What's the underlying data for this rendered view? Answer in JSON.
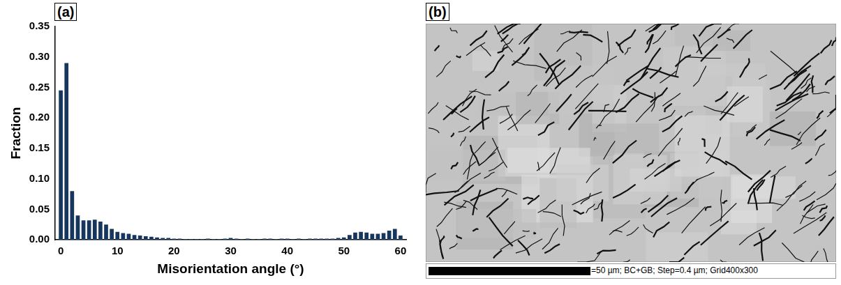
{
  "chart_data": {
    "type": "bar",
    "panel_label": "(a)",
    "x_label": "Misorientation angle (°)",
    "y_label": "Fraction",
    "x": [
      0,
      1,
      2,
      3,
      4,
      5,
      6,
      7,
      8,
      9,
      10,
      11,
      12,
      13,
      14,
      15,
      16,
      17,
      18,
      19,
      20,
      21,
      22,
      23,
      24,
      25,
      26,
      27,
      28,
      29,
      30,
      31,
      32,
      33,
      34,
      35,
      36,
      37,
      38,
      39,
      40,
      41,
      42,
      43,
      44,
      45,
      46,
      47,
      48,
      49,
      50,
      51,
      52,
      53,
      54,
      55,
      56,
      57,
      58,
      59,
      60
    ],
    "values": [
      0.245,
      0.29,
      0.08,
      0.04,
      0.032,
      0.032,
      0.033,
      0.03,
      0.025,
      0.018,
      0.013,
      0.011,
      0.01,
      0.008,
      0.007,
      0.006,
      0.005,
      0.004,
      0.003,
      0.003,
      0.002,
      0.002,
      0.001,
      0.001,
      0.001,
      0.001,
      0.002,
      0.001,
      0.001,
      0.002,
      0.003,
      0.002,
      0.001,
      0.002,
      0.001,
      0.001,
      0.002,
      0.002,
      0.001,
      0.002,
      0.002,
      0.001,
      0.002,
      0.001,
      0.002,
      0.002,
      0.002,
      0.002,
      0.002,
      0.003,
      0.004,
      0.008,
      0.012,
      0.013,
      0.012,
      0.01,
      0.01,
      0.011,
      0.015,
      0.018,
      0.007
    ],
    "color": "#17365d",
    "xlim": [
      -1,
      61
    ],
    "xticks": [
      0,
      10,
      20,
      30,
      40,
      50,
      60
    ],
    "ylim": [
      0,
      0.35
    ],
    "yticks": [
      {
        "value": 0,
        "label": "0.00"
      },
      {
        "value": 0.05,
        "label": "0.05"
      },
      {
        "value": 0.1,
        "label": "0.10"
      },
      {
        "value": 0.15,
        "label": "0.15"
      },
      {
        "value": 0.2,
        "label": "0.20"
      },
      {
        "value": 0.25,
        "label": "0.25"
      },
      {
        "value": 0.3,
        "label": "0.30"
      },
      {
        "value": 0.35,
        "label": "0.35"
      }
    ],
    "grid": false
  },
  "image_panel": {
    "panel_label": "(b)",
    "scale_bar_text": "=50 µm; BC+GB; Step=0.4 µm; Grid400x300"
  }
}
